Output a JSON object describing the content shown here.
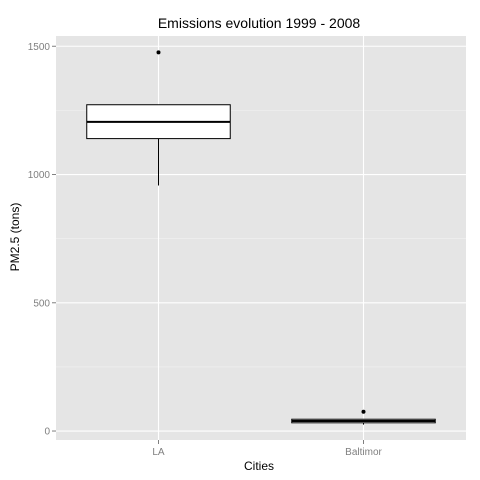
{
  "chart_data": {
    "type": "box",
    "title": "Emissions evolution 1999 - 2008",
    "xlabel": "Cities",
    "ylabel": "PM2.5 (tons)",
    "categories": [
      "LA",
      "Baltimor"
    ],
    "yticks": [
      0,
      500,
      1000,
      1500
    ],
    "ylim": [
      -35,
      1540
    ],
    "grid": true,
    "boxes": [
      {
        "category": "LA",
        "min": 957,
        "q1": 1140,
        "median": 1205,
        "q3": 1272,
        "max": 1272,
        "outliers": [
          1476
        ]
      },
      {
        "category": "Baltimor",
        "min": 25,
        "q1": 32,
        "median": 39,
        "q3": 46,
        "max": 46,
        "outliers": [
          75
        ]
      }
    ]
  },
  "colors": {
    "panel_background": "#e5e5e5",
    "grid_line": "#ffffff",
    "box_fill": "#ffffff",
    "box_stroke": "#000000",
    "tick_text": "#7f7f7f"
  }
}
